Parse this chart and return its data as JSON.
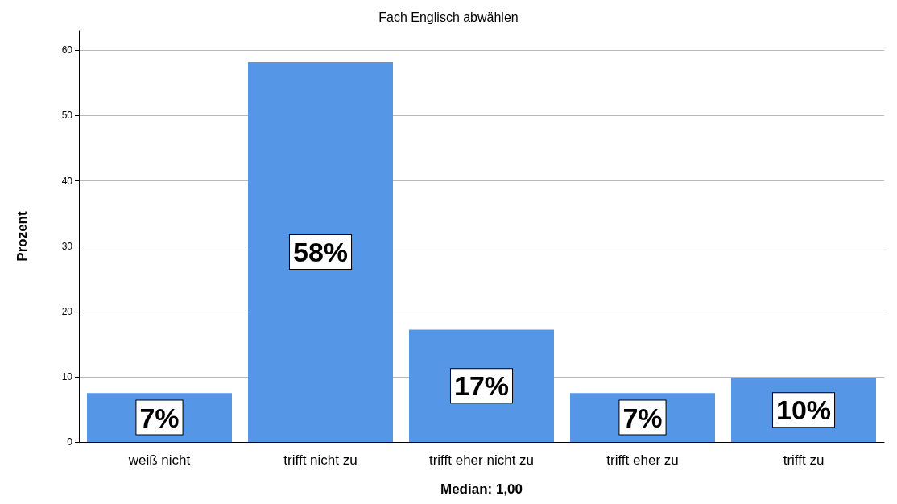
{
  "chart_data": {
    "type": "bar",
    "title": "Fach Englisch abwählen",
    "xlabel": "Median: 1,00",
    "ylabel": "Prozent",
    "categories": [
      "weiß nicht",
      "trifft nicht zu",
      "trifft eher nicht zu",
      "trifft eher zu",
      "trifft zu"
    ],
    "values": [
      7.5,
      58.2,
      17.2,
      7.5,
      9.8
    ],
    "value_labels": [
      "7%",
      "58%",
      "17%",
      "7%",
      "10%"
    ],
    "color": "#5596e6",
    "ylim": [
      0,
      63
    ],
    "yticks": [
      0,
      10,
      20,
      30,
      40,
      50,
      60
    ],
    "grid": "y"
  }
}
